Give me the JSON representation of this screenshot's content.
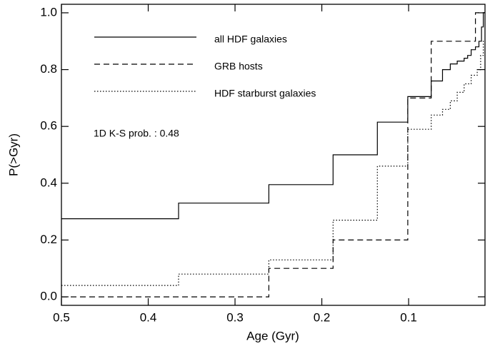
{
  "chart_data": {
    "type": "step",
    "x_label": "Age (Gyr)",
    "y_label": "P(>Gyr)",
    "xlim": [
      0.5,
      0.012
    ],
    "ylim": [
      -0.03,
      1.03
    ],
    "xticks": [
      0.5,
      0.4,
      0.3,
      0.2,
      0.1
    ],
    "yticks": [
      {
        "value": 0,
        "label": "0.0"
      },
      0.2,
      0.4,
      0.6,
      0.8,
      {
        "value": 1,
        "label": "1.0"
      }
    ],
    "annotation": "1D K-S prob. : 0.48",
    "series": [
      {
        "name": "all HDF galaxies",
        "color": "#000000",
        "dash": "solid",
        "x": [
          0.5,
          0.365,
          0.261,
          0.187,
          0.136,
          0.101,
          0.074,
          0.061,
          0.052,
          0.044,
          0.036,
          0.032,
          0.028,
          0.023,
          0.019,
          0.016,
          0.014
        ],
        "values": [
          0.275,
          0.33,
          0.395,
          0.5,
          0.615,
          0.705,
          0.76,
          0.8,
          0.82,
          0.83,
          0.84,
          0.85,
          0.87,
          0.88,
          0.9,
          0.95,
          1.0
        ]
      },
      {
        "name": "GRB hosts",
        "color": "#000000",
        "dash": "dashed",
        "x": [
          0.5,
          0.261,
          0.187,
          0.101,
          0.074,
          0.023
        ],
        "values": [
          0.0,
          0.1,
          0.2,
          0.7,
          0.9,
          1.0
        ]
      },
      {
        "name": "HDF starburst galaxies",
        "color": "#000000",
        "dash": "dotted",
        "x": [
          0.5,
          0.365,
          0.261,
          0.187,
          0.136,
          0.101,
          0.074,
          0.061,
          0.052,
          0.044,
          0.036,
          0.028,
          0.021,
          0.017,
          0.014
        ],
        "values": [
          0.04,
          0.08,
          0.13,
          0.27,
          0.46,
          0.59,
          0.64,
          0.66,
          0.69,
          0.72,
          0.75,
          0.78,
          0.8,
          0.85,
          0.9
        ]
      }
    ]
  }
}
